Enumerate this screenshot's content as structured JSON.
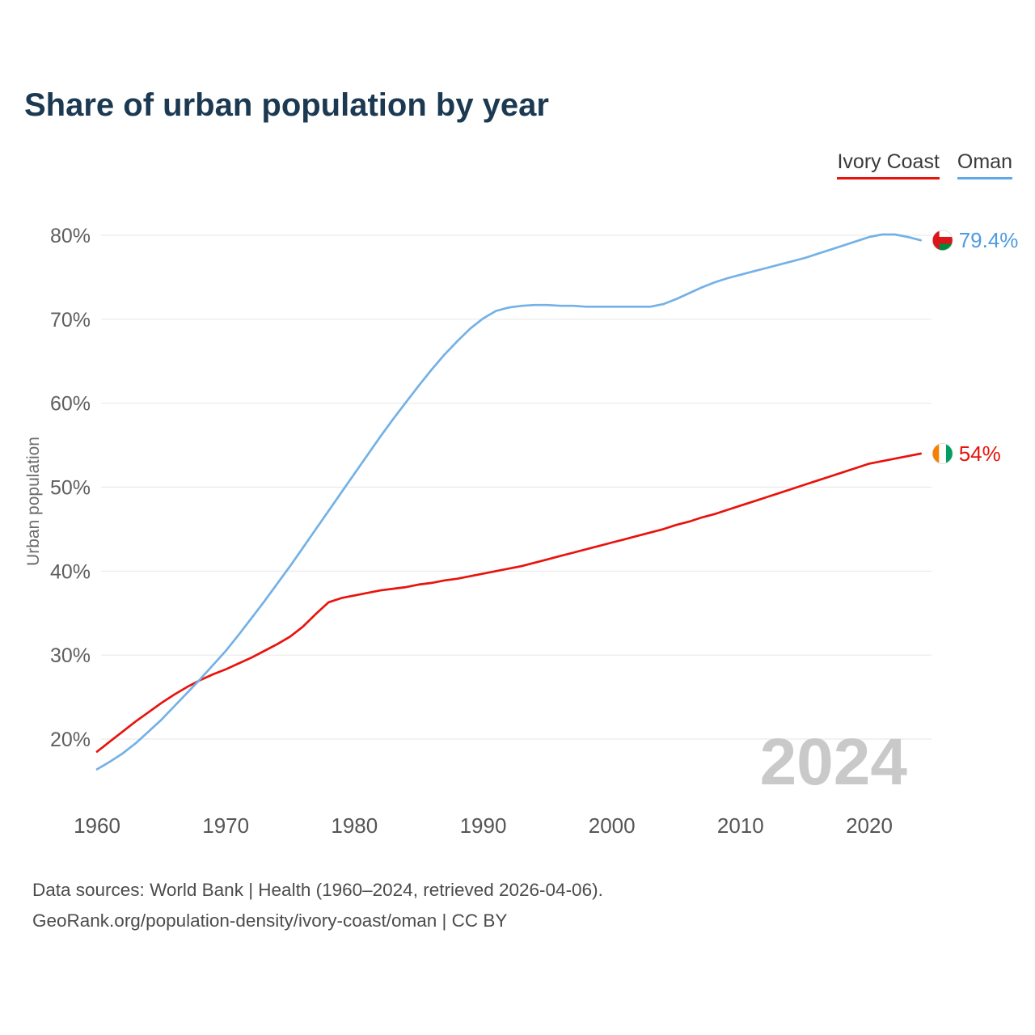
{
  "title": "Share of urban population by year",
  "legend": [
    {
      "label": "Ivory Coast",
      "color": "#e8130c"
    },
    {
      "label": "Oman",
      "color": "#62a8e5"
    }
  ],
  "watermark": {
    "text": "2024"
  },
  "footer": {
    "line1": "Data sources: World Bank | Health (1960–2024, retrieved 2026-04-06).",
    "line2": "GeoRank.org/population-density/ivory-coast/oman | CC BY"
  },
  "chart_data": {
    "type": "line",
    "title": "Share of urban population by year",
    "xlabel": "",
    "ylabel": "Urban population",
    "grid": "horizontal",
    "legend_position": "top-right",
    "xlim": [
      1958,
      2026
    ],
    "ylim": [
      13,
      84
    ],
    "xticks": [
      1960,
      1970,
      1980,
      1990,
      2000,
      2010,
      2020
    ],
    "yticks": [
      20,
      30,
      40,
      50,
      60,
      70,
      80
    ],
    "ytick_suffix": "%",
    "years": [
      1960,
      1961,
      1962,
      1963,
      1964,
      1965,
      1966,
      1967,
      1968,
      1969,
      1970,
      1971,
      1972,
      1973,
      1974,
      1975,
      1976,
      1977,
      1978,
      1979,
      1980,
      1981,
      1982,
      1983,
      1984,
      1985,
      1986,
      1987,
      1988,
      1989,
      1990,
      1991,
      1992,
      1993,
      1994,
      1995,
      1996,
      1997,
      1998,
      1999,
      2000,
      2001,
      2002,
      2003,
      2004,
      2005,
      2006,
      2007,
      2008,
      2009,
      2010,
      2011,
      2012,
      2013,
      2014,
      2015,
      2016,
      2017,
      2018,
      2019,
      2020,
      2021,
      2022,
      2023,
      2024
    ],
    "series": [
      {
        "id": "ivory-coast",
        "name": "Ivory Coast",
        "color": "#e8130c",
        "label_color": "#e8130c",
        "flag": "ivory-coast",
        "end_label": "54%",
        "values": [
          18.5,
          19.7,
          20.9,
          22.1,
          23.2,
          24.3,
          25.3,
          26.2,
          27.0,
          27.7,
          28.3,
          29.0,
          29.7,
          30.5,
          31.3,
          32.2,
          33.4,
          34.9,
          36.3,
          36.8,
          37.1,
          37.4,
          37.7,
          37.9,
          38.1,
          38.4,
          38.6,
          38.9,
          39.1,
          39.4,
          39.7,
          40.0,
          40.3,
          40.6,
          41.0,
          41.4,
          41.8,
          42.2,
          42.6,
          43.0,
          43.4,
          43.8,
          44.2,
          44.6,
          45.0,
          45.5,
          45.9,
          46.4,
          46.8,
          47.3,
          47.8,
          48.3,
          48.8,
          49.3,
          49.8,
          50.3,
          50.8,
          51.3,
          51.8,
          52.3,
          52.8,
          53.1,
          53.4,
          53.7,
          54.0
        ]
      },
      {
        "id": "oman",
        "name": "Oman",
        "color": "#74b1e6",
        "label_color": "#4f9be1",
        "flag": "oman",
        "end_label": "79.4%",
        "values": [
          16.4,
          17.3,
          18.3,
          19.5,
          20.9,
          22.3,
          23.9,
          25.5,
          27.1,
          28.8,
          30.5,
          32.4,
          34.4,
          36.4,
          38.5,
          40.6,
          42.8,
          45.0,
          47.2,
          49.4,
          51.6,
          53.8,
          56.0,
          58.1,
          60.1,
          62.1,
          64.0,
          65.8,
          67.4,
          68.9,
          70.1,
          71.0,
          71.4,
          71.6,
          71.7,
          71.7,
          71.6,
          71.6,
          71.5,
          71.5,
          71.5,
          71.5,
          71.5,
          71.5,
          71.8,
          72.4,
          73.1,
          73.8,
          74.4,
          74.9,
          75.3,
          75.7,
          76.1,
          76.5,
          76.9,
          77.3,
          77.8,
          78.3,
          78.8,
          79.3,
          79.8,
          80.1,
          80.1,
          79.8,
          79.4
        ]
      }
    ]
  }
}
